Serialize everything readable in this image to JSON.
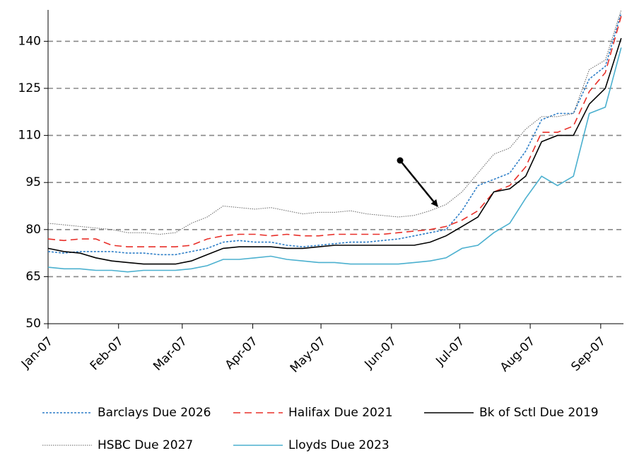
{
  "chart_data": {
    "type": "line",
    "x": [
      0,
      7,
      14,
      21,
      28,
      35,
      42,
      49,
      56,
      63,
      70,
      77,
      84,
      91,
      98,
      105,
      112,
      119,
      126,
      133,
      140,
      147,
      154,
      161,
      168,
      175,
      182,
      189,
      196,
      203,
      210,
      217,
      224,
      231,
      238,
      245,
      252
    ],
    "xlim": [
      0,
      253
    ],
    "xticks": [
      {
        "value": 0,
        "label": "Jan-07"
      },
      {
        "value": 31,
        "label": "Feb-07"
      },
      {
        "value": 59,
        "label": "Mar-07"
      },
      {
        "value": 90,
        "label": "Apr-07"
      },
      {
        "value": 120,
        "label": "May-07"
      },
      {
        "value": 151,
        "label": "Jun-07"
      },
      {
        "value": 181,
        "label": "Jul-07"
      },
      {
        "value": 212,
        "label": "Aug-07"
      },
      {
        "value": 243,
        "label": "Sep-07"
      }
    ],
    "ylim": [
      50,
      150
    ],
    "yticks": [
      50,
      65,
      80,
      95,
      110,
      125,
      140
    ],
    "grid": true,
    "legend": "bottom",
    "series": [
      {
        "name": "Barclays Due 2026",
        "color": "#2f7fc8",
        "dash": "dotted",
        "values": [
          73,
          72.5,
          73,
          73,
          73,
          72.5,
          72.5,
          72,
          72,
          73,
          74,
          76,
          76.5,
          76,
          76,
          75,
          74.5,
          75,
          75.5,
          76,
          76,
          76.5,
          77,
          78,
          79,
          80,
          86,
          94,
          96,
          98,
          105,
          115,
          117,
          117,
          128,
          132,
          149
        ]
      },
      {
        "name": "Halifax Due 2021",
        "color": "#e8302a",
        "dash": "dashed",
        "values": [
          77,
          76.5,
          77,
          77,
          75,
          74.5,
          74.5,
          74.5,
          74.5,
          75,
          77,
          78,
          78.5,
          78.5,
          78,
          78.5,
          78,
          78,
          78.5,
          78.5,
          78.5,
          78.5,
          79,
          79.5,
          80,
          81,
          83,
          86,
          92,
          94,
          100,
          111,
          111,
          113,
          124,
          130,
          148
        ]
      },
      {
        "name": "Bk of Sctl Due 2019",
        "color": "#000000",
        "dash": "solid",
        "values": [
          74,
          73,
          72.5,
          71,
          70,
          69.5,
          69,
          69,
          69,
          70,
          72,
          74,
          74.5,
          74.5,
          74.5,
          74,
          74,
          74.5,
          75,
          75,
          75,
          75,
          75,
          75,
          76,
          78,
          81,
          84,
          92,
          93,
          97,
          108,
          110,
          110,
          120,
          125,
          141
        ]
      },
      {
        "name": "HSBC Due 2027",
        "color": "#666666",
        "dash": "fine",
        "values": [
          82,
          81.5,
          81,
          80.5,
          80,
          79,
          79,
          78.5,
          79,
          82,
          84,
          87.5,
          87,
          86.5,
          87,
          86,
          85,
          85.5,
          85.5,
          86,
          85,
          84.5,
          84,
          84.5,
          86,
          88,
          92,
          98,
          104,
          106,
          112,
          116,
          116,
          117,
          131,
          134,
          150
        ]
      },
      {
        "name": "Lloyds Due 2023",
        "color": "#4bb0cf",
        "dash": "solid",
        "values": [
          68,
          67.5,
          67.5,
          67,
          67,
          66.5,
          67,
          67,
          67,
          67.5,
          68.5,
          70.5,
          70.5,
          71,
          71.5,
          70.5,
          70,
          69.5,
          69.5,
          69,
          69,
          69,
          69,
          69.5,
          70,
          71,
          74,
          75,
          79,
          82,
          90,
          97,
          94,
          97,
          117,
          119,
          138
        ]
      }
    ]
  }
}
